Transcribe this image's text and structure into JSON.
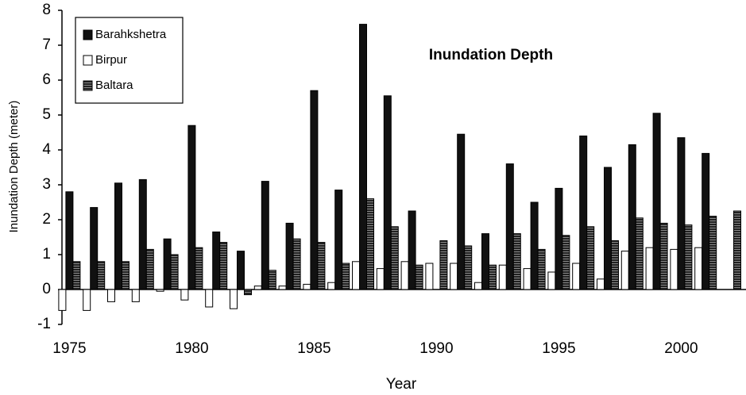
{
  "chart_data": {
    "type": "bar",
    "title": "Inundation Depth",
    "x_label": "Year",
    "y_label": "Inundation Depth (meter)",
    "categories": [
      "1975",
      null,
      null,
      null,
      null,
      "1980",
      null,
      null,
      null,
      null,
      "1985",
      null,
      null,
      null,
      null,
      "1990",
      null,
      null,
      null,
      null,
      "1995",
      null,
      null,
      null,
      null,
      "2000",
      null,
      null
    ],
    "series": [
      {
        "name": "Barahkshetra",
        "color": "#111111",
        "values": [
          2.8,
          2.35,
          3.05,
          3.15,
          1.45,
          4.7,
          1.65,
          1.1,
          3.1,
          1.9,
          5.7,
          2.85,
          7.6,
          5.55,
          2.25,
          null,
          4.45,
          1.6,
          3.6,
          2.5,
          2.9,
          4.4,
          3.5,
          4.15,
          5.05,
          4.35,
          3.9,
          null
        ]
      },
      {
        "name": "Birpur",
        "color": "#ffffff",
        "values": [
          -0.6,
          -0.6,
          -0.35,
          -0.35,
          -0.05,
          -0.3,
          -0.5,
          -0.55,
          0.1,
          0.1,
          0.15,
          0.2,
          0.8,
          0.6,
          0.8,
          0.75,
          0.75,
          0.2,
          0.7,
          0.6,
          0.5,
          0.75,
          0.3,
          1.1,
          1.2,
          1.15,
          1.2,
          null
        ]
      },
      {
        "name": "Baltara",
        "color": "#3a3a3a",
        "values": [
          0.8,
          0.8,
          0.8,
          1.15,
          1.0,
          1.2,
          1.35,
          -0.15,
          0.55,
          1.45,
          1.35,
          0.75,
          2.6,
          1.8,
          0.7,
          1.4,
          1.25,
          0.7,
          1.6,
          1.15,
          1.55,
          1.8,
          1.4,
          2.05,
          1.9,
          1.85,
          2.1,
          2.25
        ]
      }
    ],
    "ylim": [
      -1,
      8
    ],
    "yticks": [
      -1,
      0,
      1,
      2,
      3,
      4,
      5,
      6,
      7,
      8
    ],
    "legend_position": "upper left"
  }
}
